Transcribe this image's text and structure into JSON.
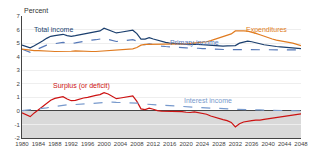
{
  "chart_data": {
    "type": "line",
    "ylabel": "Percent",
    "x": [
      1980,
      1981,
      1982,
      1983,
      1984,
      1985,
      1986,
      1987,
      1988,
      1989,
      1990,
      1991,
      1992,
      1993,
      1994,
      1995,
      1996,
      1997,
      1998,
      1999,
      2000,
      2001,
      2002,
      2003,
      2004,
      2005,
      2006,
      2007,
      2008,
      2009,
      2010,
      2011,
      2012,
      2013,
      2014,
      2015,
      2016,
      2017,
      2018,
      2019,
      2020,
      2021,
      2022,
      2023,
      2024,
      2025,
      2026,
      2027,
      2028,
      2029,
      2030,
      2031,
      2032,
      2033,
      2034,
      2035,
      2036,
      2037,
      2038,
      2039,
      2040,
      2041,
      2042,
      2043,
      2044,
      2045,
      2046,
      2047,
      2048
    ],
    "series": [
      {
        "name": "Total income",
        "color": "#1b3f6e",
        "line_style": "solid",
        "values": [
          4.85,
          4.75,
          4.65,
          4.8,
          4.95,
          5.15,
          5.35,
          5.5,
          5.55,
          5.6,
          5.65,
          5.55,
          5.5,
          5.55,
          5.6,
          5.65,
          5.7,
          5.75,
          5.8,
          5.9,
          6.1,
          6.0,
          5.85,
          5.75,
          5.8,
          5.85,
          5.9,
          5.95,
          5.7,
          5.3,
          5.3,
          5.4,
          5.3,
          5.2,
          5.1,
          5.05,
          5.0,
          5.0,
          4.98,
          4.95,
          4.9,
          4.88,
          4.92,
          4.9,
          4.88,
          4.85,
          4.82,
          4.8,
          4.8,
          4.78,
          4.8,
          4.8,
          4.82,
          5.0,
          5.1,
          5.15,
          5.1,
          5.05,
          4.95,
          4.88,
          4.82,
          4.78,
          4.75,
          4.72,
          4.7,
          4.68,
          4.65,
          4.62,
          4.6
        ]
      },
      {
        "name": "Primary income",
        "color": "#5578b8",
        "line_style": "dashed",
        "values": [
          4.55,
          4.42,
          4.32,
          4.45,
          4.6,
          4.75,
          4.85,
          4.92,
          4.95,
          5.0,
          5.05,
          5.0,
          4.98,
          5.02,
          5.08,
          5.12,
          5.18,
          5.22,
          5.25,
          5.3,
          5.35,
          5.28,
          5.18,
          5.12,
          5.15,
          5.18,
          5.22,
          5.25,
          5.15,
          4.9,
          4.88,
          4.95,
          4.9,
          4.82,
          4.78,
          4.75,
          4.72,
          4.72,
          4.7,
          4.68,
          4.65,
          4.63,
          4.65,
          4.62,
          4.6,
          4.58,
          4.55,
          4.53,
          4.52,
          4.5,
          4.52,
          4.52,
          4.52,
          4.55,
          4.55,
          4.55,
          4.53,
          4.52,
          4.5,
          4.5,
          4.5,
          4.5,
          4.5,
          4.5,
          4.5,
          4.5,
          4.5,
          4.5,
          4.5
        ]
      },
      {
        "name": "Expenditures",
        "color": "#e07b20",
        "line_style": "solid",
        "values": [
          4.55,
          4.5,
          4.48,
          4.45,
          4.45,
          4.45,
          4.45,
          4.4,
          4.38,
          4.38,
          4.35,
          4.38,
          4.4,
          4.42,
          4.4,
          4.4,
          4.38,
          4.38,
          4.38,
          4.4,
          4.4,
          4.42,
          4.45,
          4.48,
          4.5,
          4.52,
          4.55,
          4.58,
          4.68,
          4.85,
          4.9,
          4.9,
          4.92,
          4.9,
          4.9,
          4.9,
          4.92,
          4.92,
          4.92,
          4.95,
          4.95,
          4.98,
          5.0,
          5.02,
          5.05,
          5.1,
          5.18,
          5.28,
          5.35,
          5.45,
          5.55,
          5.68,
          5.9,
          5.92,
          5.9,
          5.88,
          5.82,
          5.72,
          5.62,
          5.5,
          5.4,
          5.3,
          5.22,
          5.15,
          5.1,
          5.05,
          5.0,
          4.92,
          4.82
        ]
      },
      {
        "name": "Surplus (or deficit)",
        "color": "#cc1111",
        "line_style": "solid",
        "values": [
          -0.15,
          -0.3,
          -0.42,
          -0.15,
          0.1,
          0.35,
          0.55,
          0.78,
          0.92,
          1.0,
          1.05,
          0.88,
          0.75,
          0.78,
          0.88,
          0.95,
          1.0,
          1.1,
          1.15,
          1.2,
          1.35,
          1.25,
          1.05,
          0.9,
          0.95,
          1.0,
          1.05,
          1.1,
          0.7,
          0.15,
          0.1,
          0.2,
          0.12,
          0.02,
          -0.02,
          -0.02,
          -0.05,
          -0.02,
          0.0,
          -0.05,
          -0.1,
          -0.12,
          -0.08,
          -0.12,
          -0.18,
          -0.25,
          -0.38,
          -0.48,
          -0.55,
          -0.65,
          -0.72,
          -0.85,
          -1.18,
          -0.95,
          -0.82,
          -0.75,
          -0.72,
          -0.68,
          -0.68,
          -0.62,
          -0.58,
          -0.52,
          -0.48,
          -0.42,
          -0.38,
          -0.35,
          -0.32,
          -0.28,
          -0.22
        ]
      },
      {
        "name": "Interest income",
        "color": "#7799cc",
        "line_style": "dashed",
        "values": [
          0.02,
          0.05,
          0.07,
          0.1,
          0.13,
          0.18,
          0.22,
          0.28,
          0.33,
          0.38,
          0.43,
          0.45,
          0.45,
          0.47,
          0.5,
          0.52,
          0.55,
          0.57,
          0.6,
          0.62,
          0.65,
          0.65,
          0.65,
          0.63,
          0.63,
          0.63,
          0.63,
          0.62,
          0.58,
          0.52,
          0.5,
          0.48,
          0.45,
          0.42,
          0.4,
          0.38,
          0.35,
          0.33,
          0.32,
          0.3,
          0.28,
          0.27,
          0.27,
          0.25,
          0.23,
          0.22,
          0.2,
          0.18,
          0.18,
          0.15,
          0.15,
          0.13,
          0.12,
          0.12,
          0.1,
          0.1,
          0.08,
          0.07,
          0.07,
          0.05,
          0.05,
          0.03,
          0.03,
          0.02,
          0.02,
          0.02,
          0.02,
          0.01,
          0.01
        ]
      }
    ],
    "annotations": [
      {
        "text": "Total income",
        "x": 1982.5,
        "y": 5.58,
        "color": "#1b3f6e"
      },
      {
        "text": "Expenditures",
        "x": 2034,
        "y": 5.55,
        "color": "#e07b20"
      },
      {
        "text": "Primary income",
        "x": 2015.5,
        "y": 4.55,
        "color": "#5578b8"
      },
      {
        "text": "Surplus (or deficit)",
        "x": 1987,
        "y": 1.42,
        "color": "#cc1111"
      },
      {
        "text": "Interest income",
        "x": 2019,
        "y": 0.35,
        "color": "#7799cc"
      }
    ],
    "shaded": {
      "from": -2,
      "to": 0,
      "color": "#d9d9d9"
    },
    "xlim": [
      1980,
      2048
    ],
    "xticks": [
      1980,
      1984,
      1988,
      1992,
      1996,
      2000,
      2004,
      2008,
      2012,
      2016,
      2020,
      2024,
      2028,
      2032,
      2036,
      2040,
      2044,
      2048
    ],
    "ylim": [
      -2,
      7
    ],
    "yticks": [
      -2,
      -1,
      0,
      1,
      2,
      3,
      4,
      5,
      6,
      7
    ],
    "grid": "y"
  }
}
